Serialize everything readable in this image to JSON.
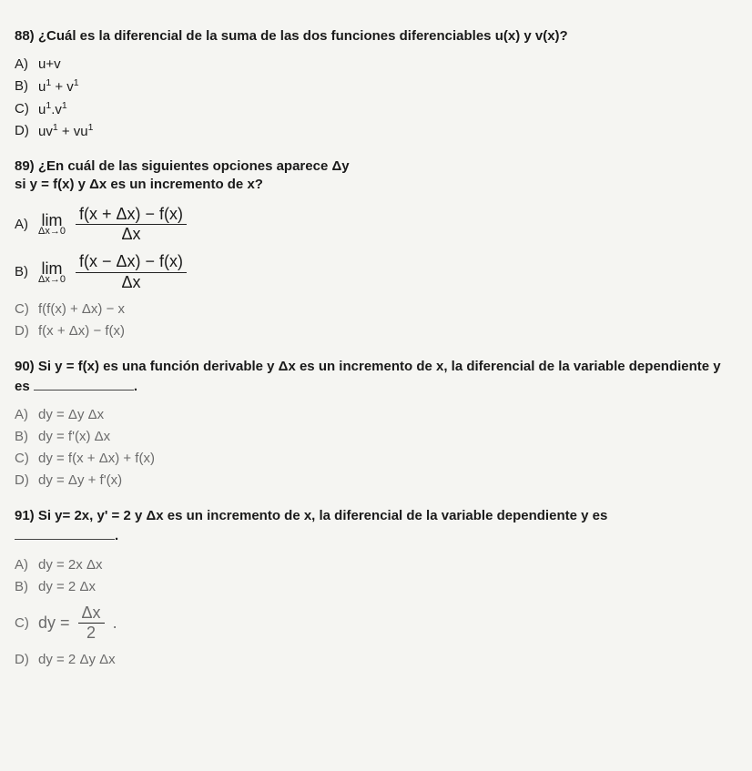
{
  "q88": {
    "header": "88) ¿Cuál es la diferencial de la suma de las dos funciones diferenciables u(x) y v(x)?",
    "A": {
      "label": "A)",
      "text": "u+v"
    },
    "B": {
      "label": "B)",
      "base1": "u",
      "exp1": "1",
      "plus": " + ",
      "base2": "v",
      "exp2": "1"
    },
    "C": {
      "label": "C)",
      "base1": "u",
      "exp1": "1",
      "dot": ".",
      "base2": "v",
      "exp2": "1"
    },
    "D": {
      "label": "D)",
      "t1": "uv",
      "e1": "1",
      "plus": " + ",
      "t2": "vu",
      "e2": "1"
    }
  },
  "q89": {
    "header_l1": "89) ¿En cuál de las siguientes opciones aparece Δy",
    "header_l2": "si y = f(x) y Δx es un incremento de x?",
    "A": {
      "label": "A)",
      "lim_top": "lim",
      "lim_bot": "Δx→0",
      "num": "f(x + Δx) − f(x)",
      "den": "Δx"
    },
    "B": {
      "label": "B)",
      "lim_top": "lim",
      "lim_bot": "Δx→0",
      "num": "f(x − Δx) − f(x)",
      "den": "Δx"
    },
    "C": {
      "label": "C)",
      "text": "f(f(x) + Δx) − x"
    },
    "D": {
      "label": "D)",
      "text": "f(x + Δx) − f(x)"
    }
  },
  "q90": {
    "header_pre": "90) Si y = f(x) es una función derivable y Δx es un incremento de x, la diferencial de la variable dependiente y es ",
    "header_post": ".",
    "A": {
      "label": "A)",
      "text": "dy = Δy Δx"
    },
    "B": {
      "label": "B)",
      "text": "dy = f'(x) Δx"
    },
    "C": {
      "label": "C)",
      "text": "dy = f(x + Δx) + f(x)"
    },
    "D": {
      "label": "D)",
      "text": "dy = Δy + f'(x)"
    }
  },
  "q91": {
    "header_pre": "91) Si y= 2x, y' = 2 y Δx es un incremento de x, la diferencial de la variable dependiente y es ",
    "header_post": ".",
    "A": {
      "label": "A)",
      "text": "dy = 2x Δx"
    },
    "B": {
      "label": "B)",
      "text": "dy = 2 Δx"
    },
    "C": {
      "label": "C)",
      "pre": "dy = ",
      "num": "Δx",
      "den": "2",
      "post": " ."
    },
    "D": {
      "label": "D)",
      "text": "dy = 2 Δy Δx"
    }
  }
}
